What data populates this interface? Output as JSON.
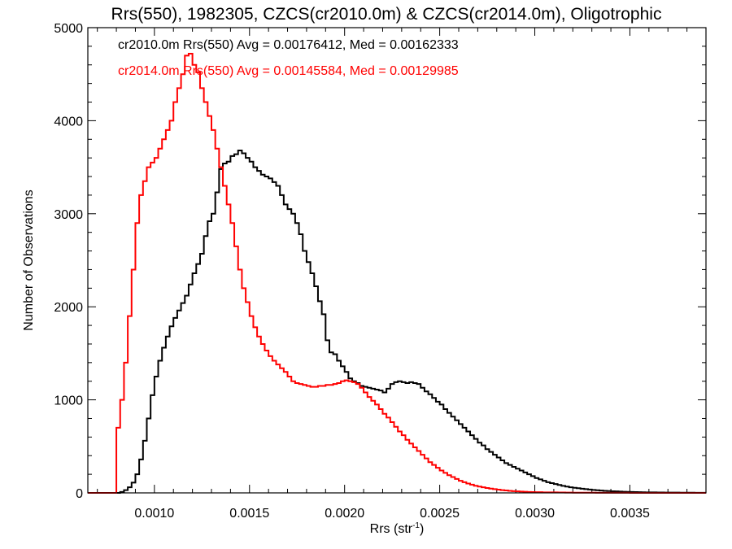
{
  "chart_data": {
    "type": "line",
    "title": "Rrs(550), 1982305, CZCS(cr2010.0m) & CZCS(cr2014.0m), Oligotrophic",
    "xlabel": "Rrs (str",
    "xlabel_superscript": "-1",
    "xlabel_suffix": ")",
    "ylabel": "Number of Observations",
    "xlim": [
      0.00065,
      0.0039
    ],
    "ylim": [
      0,
      5000
    ],
    "x_ticks": [
      0.001,
      0.0015,
      0.002,
      0.0025,
      0.003,
      0.0035
    ],
    "x_tick_labels": [
      "0.0010",
      "0.0015",
      "0.0020",
      "0.0025",
      "0.0030",
      "0.0035"
    ],
    "y_ticks": [
      0,
      1000,
      2000,
      3000,
      4000,
      5000
    ],
    "y_tick_labels": [
      "0",
      "1000",
      "2000",
      "3000",
      "4000",
      "5000"
    ],
    "grid": false,
    "step_style": "histogram",
    "legend_placement": "top-left",
    "series": [
      {
        "name": "cr2010.0m Rrs(550) Avg = 0.00176412, Med = 0.00162333",
        "color": "#000000",
        "points": [
          [
            0.00065,
            0
          ],
          [
            0.0008,
            0
          ],
          [
            0.00082,
            10
          ],
          [
            0.00084,
            30
          ],
          [
            0.00086,
            60
          ],
          [
            0.00088,
            110
          ],
          [
            0.0009,
            200
          ],
          [
            0.00092,
            360
          ],
          [
            0.00094,
            560
          ],
          [
            0.00096,
            800
          ],
          [
            0.00098,
            1050
          ],
          [
            0.001,
            1250
          ],
          [
            0.00102,
            1420
          ],
          [
            0.00104,
            1560
          ],
          [
            0.00106,
            1680
          ],
          [
            0.00108,
            1790
          ],
          [
            0.0011,
            1880
          ],
          [
            0.00112,
            1960
          ],
          [
            0.00114,
            2040
          ],
          [
            0.00116,
            2120
          ],
          [
            0.00118,
            2240
          ],
          [
            0.0012,
            2360
          ],
          [
            0.00122,
            2460
          ],
          [
            0.00124,
            2570
          ],
          [
            0.00126,
            2760
          ],
          [
            0.00128,
            2920
          ],
          [
            0.0013,
            3000
          ],
          [
            0.00132,
            3230
          ],
          [
            0.00134,
            3480
          ],
          [
            0.00136,
            3540
          ],
          [
            0.00138,
            3560
          ],
          [
            0.0014,
            3620
          ],
          [
            0.00142,
            3640
          ],
          [
            0.00144,
            3680
          ],
          [
            0.00146,
            3650
          ],
          [
            0.00148,
            3600
          ],
          [
            0.0015,
            3560
          ],
          [
            0.00152,
            3500
          ],
          [
            0.00154,
            3460
          ],
          [
            0.00156,
            3420
          ],
          [
            0.00158,
            3400
          ],
          [
            0.0016,
            3380
          ],
          [
            0.00162,
            3340
          ],
          [
            0.00164,
            3300
          ],
          [
            0.00166,
            3200
          ],
          [
            0.00168,
            3100
          ],
          [
            0.0017,
            3050
          ],
          [
            0.00172,
            3000
          ],
          [
            0.00174,
            2900
          ],
          [
            0.00176,
            2780
          ],
          [
            0.00178,
            2600
          ],
          [
            0.0018,
            2480
          ],
          [
            0.00182,
            2360
          ],
          [
            0.00184,
            2220
          ],
          [
            0.00186,
            2060
          ],
          [
            0.00188,
            1920
          ],
          [
            0.0019,
            1640
          ],
          [
            0.00192,
            1510
          ],
          [
            0.00194,
            1490
          ],
          [
            0.00196,
            1420
          ],
          [
            0.00198,
            1360
          ],
          [
            0.002,
            1300
          ],
          [
            0.00202,
            1230
          ],
          [
            0.00204,
            1200
          ],
          [
            0.00206,
            1180
          ],
          [
            0.00208,
            1150
          ],
          [
            0.0021,
            1140
          ],
          [
            0.00212,
            1130
          ],
          [
            0.00214,
            1120
          ],
          [
            0.00216,
            1110
          ],
          [
            0.00218,
            1100
          ],
          [
            0.0022,
            1080
          ],
          [
            0.00222,
            1120
          ],
          [
            0.00224,
            1170
          ],
          [
            0.00226,
            1190
          ],
          [
            0.00228,
            1200
          ],
          [
            0.0023,
            1190
          ],
          [
            0.00232,
            1180
          ],
          [
            0.00234,
            1190
          ],
          [
            0.00236,
            1180
          ],
          [
            0.00238,
            1170
          ],
          [
            0.0024,
            1130
          ],
          [
            0.00242,
            1090
          ],
          [
            0.00244,
            1060
          ],
          [
            0.00246,
            1020
          ],
          [
            0.00248,
            980
          ],
          [
            0.0025,
            950
          ],
          [
            0.00252,
            900
          ],
          [
            0.00254,
            860
          ],
          [
            0.00256,
            820
          ],
          [
            0.00258,
            780
          ],
          [
            0.0026,
            740
          ],
          [
            0.00262,
            700
          ],
          [
            0.00264,
            660
          ],
          [
            0.00266,
            620
          ],
          [
            0.00268,
            580
          ],
          [
            0.0027,
            540
          ],
          [
            0.00272,
            510
          ],
          [
            0.00274,
            470
          ],
          [
            0.00276,
            440
          ],
          [
            0.00278,
            410
          ],
          [
            0.0028,
            380
          ],
          [
            0.00282,
            350
          ],
          [
            0.00284,
            320
          ],
          [
            0.00286,
            300
          ],
          [
            0.00288,
            280
          ],
          [
            0.0029,
            260
          ],
          [
            0.00292,
            240
          ],
          [
            0.00294,
            220
          ],
          [
            0.00296,
            200
          ],
          [
            0.00298,
            180
          ],
          [
            0.003,
            160
          ],
          [
            0.00302,
            145
          ],
          [
            0.00304,
            130
          ],
          [
            0.00306,
            115
          ],
          [
            0.00308,
            105
          ],
          [
            0.0031,
            95
          ],
          [
            0.00312,
            85
          ],
          [
            0.00314,
            75
          ],
          [
            0.00316,
            68
          ],
          [
            0.00318,
            60
          ],
          [
            0.0032,
            55
          ],
          [
            0.00322,
            50
          ],
          [
            0.00324,
            45
          ],
          [
            0.00326,
            40
          ],
          [
            0.00328,
            36
          ],
          [
            0.0033,
            32
          ],
          [
            0.00332,
            28
          ],
          [
            0.00334,
            25
          ],
          [
            0.00336,
            22
          ],
          [
            0.00338,
            20
          ],
          [
            0.0034,
            18
          ],
          [
            0.00342,
            16
          ],
          [
            0.00344,
            14
          ],
          [
            0.00346,
            12
          ],
          [
            0.00348,
            11
          ],
          [
            0.0035,
            10
          ],
          [
            0.00352,
            9
          ],
          [
            0.00354,
            8
          ],
          [
            0.00356,
            7
          ],
          [
            0.00358,
            6
          ],
          [
            0.0036,
            5
          ],
          [
            0.00364,
            4
          ],
          [
            0.00368,
            3
          ],
          [
            0.00372,
            3
          ],
          [
            0.00376,
            2
          ],
          [
            0.0038,
            2
          ],
          [
            0.00384,
            1
          ],
          [
            0.0039,
            1
          ]
        ]
      },
      {
        "name": "cr2014.0m Rrs(550) Avg = 0.00145584, Med = 0.00129985",
        "color": "#ff0000",
        "points": [
          [
            0.00065,
            0
          ],
          [
            0.00079,
            0
          ],
          [
            0.0008,
            700
          ],
          [
            0.00082,
            1000
          ],
          [
            0.00084,
            1400
          ],
          [
            0.00086,
            1900
          ],
          [
            0.00088,
            2400
          ],
          [
            0.0009,
            2900
          ],
          [
            0.00092,
            3200
          ],
          [
            0.00094,
            3350
          ],
          [
            0.00096,
            3500
          ],
          [
            0.00098,
            3550
          ],
          [
            0.001,
            3600
          ],
          [
            0.00102,
            3700
          ],
          [
            0.00104,
            3800
          ],
          [
            0.00106,
            3900
          ],
          [
            0.00108,
            4000
          ],
          [
            0.0011,
            4200
          ],
          [
            0.00112,
            4350
          ],
          [
            0.00114,
            4500
          ],
          [
            0.00116,
            4700
          ],
          [
            0.00118,
            4720
          ],
          [
            0.0012,
            4600
          ],
          [
            0.00122,
            4520
          ],
          [
            0.00124,
            4350
          ],
          [
            0.00126,
            4200
          ],
          [
            0.00128,
            4050
          ],
          [
            0.0013,
            3900
          ],
          [
            0.00132,
            3700
          ],
          [
            0.00134,
            3500
          ],
          [
            0.00136,
            3300
          ],
          [
            0.00138,
            3100
          ],
          [
            0.0014,
            2900
          ],
          [
            0.00142,
            2650
          ],
          [
            0.00144,
            2400
          ],
          [
            0.00146,
            2200
          ],
          [
            0.00148,
            2050
          ],
          [
            0.0015,
            1900
          ],
          [
            0.00152,
            1780
          ],
          [
            0.00154,
            1680
          ],
          [
            0.00156,
            1600
          ],
          [
            0.00158,
            1530
          ],
          [
            0.0016,
            1470
          ],
          [
            0.00162,
            1420
          ],
          [
            0.00164,
            1380
          ],
          [
            0.00166,
            1340
          ],
          [
            0.00168,
            1300
          ],
          [
            0.0017,
            1250
          ],
          [
            0.00172,
            1200
          ],
          [
            0.00174,
            1180
          ],
          [
            0.00176,
            1170
          ],
          [
            0.00178,
            1160
          ],
          [
            0.0018,
            1150
          ],
          [
            0.00182,
            1140
          ],
          [
            0.00184,
            1140
          ],
          [
            0.00186,
            1150
          ],
          [
            0.00188,
            1150
          ],
          [
            0.0019,
            1160
          ],
          [
            0.00192,
            1160
          ],
          [
            0.00194,
            1170
          ],
          [
            0.00196,
            1180
          ],
          [
            0.00198,
            1200
          ],
          [
            0.002,
            1210
          ],
          [
            0.00202,
            1200
          ],
          [
            0.00204,
            1190
          ],
          [
            0.00206,
            1170
          ],
          [
            0.00208,
            1130
          ],
          [
            0.0021,
            1080
          ],
          [
            0.00212,
            1030
          ],
          [
            0.00214,
            990
          ],
          [
            0.00216,
            950
          ],
          [
            0.00218,
            900
          ],
          [
            0.0022,
            850
          ],
          [
            0.00222,
            810
          ],
          [
            0.00224,
            760
          ],
          [
            0.00226,
            710
          ],
          [
            0.00228,
            660
          ],
          [
            0.0023,
            620
          ],
          [
            0.00232,
            570
          ],
          [
            0.00234,
            530
          ],
          [
            0.00236,
            490
          ],
          [
            0.00238,
            450
          ],
          [
            0.0024,
            410
          ],
          [
            0.00242,
            370
          ],
          [
            0.00244,
            330
          ],
          [
            0.00246,
            300
          ],
          [
            0.00248,
            270
          ],
          [
            0.0025,
            240
          ],
          [
            0.00252,
            215
          ],
          [
            0.00254,
            190
          ],
          [
            0.00256,
            170
          ],
          [
            0.00258,
            150
          ],
          [
            0.0026,
            130
          ],
          [
            0.00262,
            115
          ],
          [
            0.00264,
            100
          ],
          [
            0.00266,
            88
          ],
          [
            0.00268,
            77
          ],
          [
            0.0027,
            68
          ],
          [
            0.00272,
            60
          ],
          [
            0.00274,
            52
          ],
          [
            0.00276,
            46
          ],
          [
            0.00278,
            40
          ],
          [
            0.0028,
            35
          ],
          [
            0.00282,
            30
          ],
          [
            0.00284,
            26
          ],
          [
            0.00286,
            22
          ],
          [
            0.00288,
            19
          ],
          [
            0.0029,
            16
          ],
          [
            0.00292,
            14
          ],
          [
            0.00294,
            12
          ],
          [
            0.00296,
            10
          ],
          [
            0.00298,
            9
          ],
          [
            0.003,
            8
          ],
          [
            0.00304,
            6
          ],
          [
            0.00308,
            5
          ],
          [
            0.00312,
            4
          ],
          [
            0.00316,
            3
          ],
          [
            0.0032,
            2
          ],
          [
            0.00326,
            2
          ],
          [
            0.00332,
            1
          ],
          [
            0.0034,
            1
          ],
          [
            0.0035,
            0
          ],
          [
            0.0039,
            0
          ]
        ]
      }
    ]
  }
}
